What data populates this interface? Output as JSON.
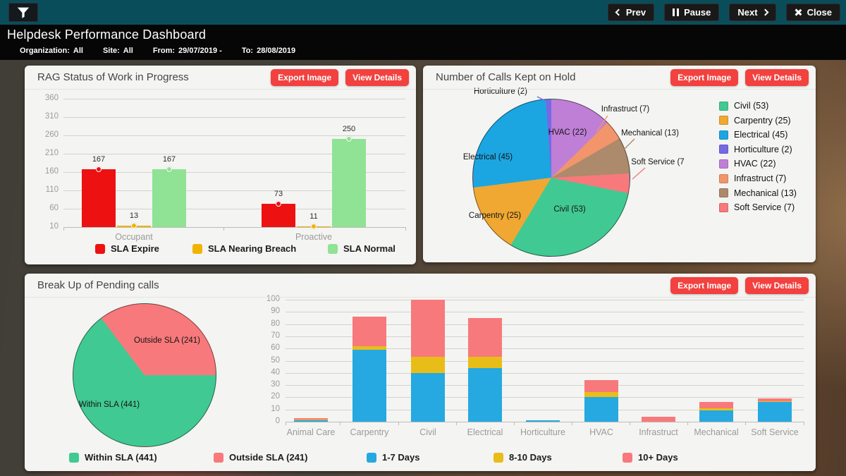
{
  "topbar": {
    "prev_label": "Prev",
    "pause_label": "Pause",
    "next_label": "Next",
    "close_label": "Close"
  },
  "header": {
    "title": "Helpdesk Performance Dashboard",
    "filters": [
      {
        "label": "Organization:",
        "value": "All"
      },
      {
        "label": "Site:",
        "value": "All"
      },
      {
        "label": "From:",
        "value": "29/07/2019 -"
      },
      {
        "label": "To:",
        "value": "28/08/2019"
      }
    ]
  },
  "panels": {
    "rag": {
      "title": "RAG Status of Work in Progress",
      "export_label": "Export Image",
      "view_label": "View Details"
    },
    "hold": {
      "title": "Number of Calls Kept on Hold",
      "export_label": "Export Image",
      "view_label": "View Details"
    },
    "pending": {
      "title": "Break Up of Pending calls",
      "export_label": "Export Image",
      "view_label": "View Details"
    }
  },
  "colors": {
    "sla_expire": "#ee1111",
    "sla_nearing": "#f0b400",
    "sla_normal": "#90e295",
    "civil": "#41c993",
    "carpentry": "#f0a832",
    "electrical": "#1ba6e2",
    "horticulture": "#7569e6",
    "hvac": "#bf7fd6",
    "infrastruct": "#f2956b",
    "mechanical": "#ad8a6b",
    "soft_service": "#f8797b",
    "days_1_7": "#25a9e0",
    "days_8_10": "#e9bd18",
    "days_10_plus": "#f8797b"
  },
  "chart_data": [
    {
      "id": "rag",
      "type": "bar",
      "title": "RAG Status of Work in Progress",
      "categories": [
        "Occupant",
        "Proactive"
      ],
      "series": [
        {
          "name": "SLA Expire",
          "color": "#ee1111",
          "values": [
            167,
            73
          ]
        },
        {
          "name": "SLA Nearing Breach",
          "color": "#f0b400",
          "values": [
            13,
            11
          ]
        },
        {
          "name": "SLA Normal",
          "color": "#90e295",
          "values": [
            167,
            250
          ]
        }
      ],
      "ylim": [
        10,
        360
      ],
      "yticks": [
        360,
        310,
        260,
        210,
        160,
        110,
        60,
        10
      ],
      "grid": true,
      "legend_position": "bottom"
    },
    {
      "id": "hold",
      "type": "pie",
      "title": "Number of Calls Kept on Hold",
      "start_angle": 0,
      "slices": [
        {
          "name": "HVAC",
          "label": "HVAC (22)",
          "value": 22,
          "color": "#bf7fd6",
          "label_pos": [
            205,
            95
          ],
          "line": null
        },
        {
          "name": "Infrastruct",
          "label": "Infrastruct (7)",
          "value": 7,
          "color": "#f2956b",
          "label_pos": [
            287,
            62
          ],
          "line": [
            262,
            71,
            246,
            94
          ]
        },
        {
          "name": "Mechanical",
          "label": "Mechanical (13)",
          "value": 13,
          "color": "#ad8a6b",
          "label_pos": [
            322,
            96
          ],
          "line": [
            300,
            104,
            284,
            120
          ]
        },
        {
          "name": "Soft Service",
          "label": "Soft Service (7",
          "value": 7,
          "color": "#f8797b",
          "label_pos": [
            333,
            137
          ],
          "line": [
            315,
            145,
            297,
            161
          ]
        },
        {
          "name": "Civil",
          "label": "Civil (53)",
          "value": 53,
          "color": "#41c993",
          "label_pos": [
            208,
            204
          ],
          "line": null
        },
        {
          "name": "Carpentry",
          "label": "Carpentry (25)",
          "value": 25,
          "color": "#f0a832",
          "label_pos": [
            102,
            213
          ],
          "line": null
        },
        {
          "name": "Electrical",
          "label": "Electrical (45)",
          "value": 45,
          "color": "#1ba6e2",
          "label_pos": [
            92,
            130
          ],
          "line": null
        },
        {
          "name": "Horticulture",
          "label": "Horticulture (2)",
          "value": 2,
          "color": "#7569e6",
          "label_pos": [
            110,
            37
          ],
          "line": [
            162,
            44,
            177,
            52
          ]
        }
      ],
      "legend_position": "right",
      "legend": [
        {
          "label": "Civil (53)",
          "color": "#41c993"
        },
        {
          "label": "Carpentry (25)",
          "color": "#f0a832"
        },
        {
          "label": "Electrical (45)",
          "color": "#1ba6e2"
        },
        {
          "label": "Horticulture (2)",
          "color": "#7569e6"
        },
        {
          "label": "HVAC (22)",
          "color": "#bf7fd6"
        },
        {
          "label": "Infrastruct (7)",
          "color": "#f2956b"
        },
        {
          "label": "Mechanical (13)",
          "color": "#ad8a6b"
        },
        {
          "label": "Soft Service (7)",
          "color": "#f8797b"
        }
      ]
    },
    {
      "id": "pending_pie",
      "type": "pie",
      "title": "Break Up of Pending calls",
      "start_angle": 90,
      "slices": [
        {
          "name": "Within SLA",
          "label": "Within SLA (441)",
          "value": 441,
          "color": "#41c993",
          "label_pos": [
            120,
            186
          ],
          "line": null
        },
        {
          "name": "Outside SLA",
          "label": "Outside SLA (241)",
          "value": 241,
          "color": "#f8797b",
          "label_pos": [
            202,
            95
          ],
          "line": null
        }
      ],
      "legend_position": "bottom",
      "legend": [
        {
          "label": "Within SLA (441)",
          "color": "#41c993"
        },
        {
          "label": "Outside SLA (241)",
          "color": "#f8797b"
        }
      ]
    },
    {
      "id": "pending_bar",
      "type": "bar",
      "stacked": true,
      "title": "Break Up of Pending calls",
      "categories": [
        "Animal Care",
        "Carpentry",
        "Civil",
        "Electrical",
        "Horticulture",
        "HVAC",
        "Infrastruct",
        "Mechanical",
        "Soft Service"
      ],
      "series": [
        {
          "name": "1-7 Days",
          "color": "#25a9e0",
          "values": [
            1,
            59,
            40,
            44,
            1,
            20,
            0,
            9,
            16
          ]
        },
        {
          "name": "8-10 Days",
          "color": "#e9bd18",
          "values": [
            1,
            3,
            13,
            9,
            0,
            4,
            0,
            2,
            1
          ]
        },
        {
          "name": "10+ Days",
          "color": "#f8797b",
          "values": [
            1,
            24,
            47,
            32,
            0,
            10,
            4,
            5,
            2
          ]
        }
      ],
      "ylim": [
        0,
        100
      ],
      "yticks": [
        0,
        10,
        20,
        30,
        40,
        50,
        60,
        70,
        80,
        90,
        100
      ],
      "grid": true,
      "legend_position": "bottom"
    }
  ]
}
